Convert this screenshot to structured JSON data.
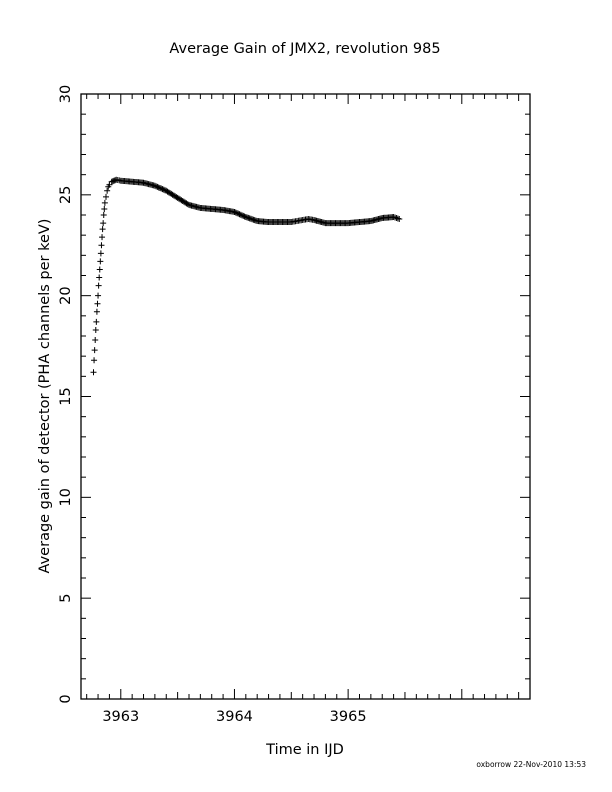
{
  "chart_data": {
    "type": "scatter",
    "marker": "+",
    "title": "Average Gain of JMX2, revolution 985",
    "xlabel": "Time in IJD",
    "ylabel": "Average gain of detector (PHA channels per keV)",
    "footer": "oxborrow 22-Nov-2010 13:53",
    "xlim": [
      3962.65,
      3966.6
    ],
    "ylim": [
      0,
      30
    ],
    "x_ticks": [
      3963,
      3964,
      3965
    ],
    "y_ticks": [
      0,
      5,
      10,
      15,
      20,
      25,
      30
    ],
    "grid": false,
    "series": [
      {
        "points": [
          [
            3962.76,
            16.2
          ],
          [
            3962.765,
            16.8
          ],
          [
            3962.77,
            17.3
          ],
          [
            3962.775,
            17.8
          ],
          [
            3962.78,
            18.3
          ],
          [
            3962.785,
            18.7
          ],
          [
            3962.79,
            19.2
          ],
          [
            3962.795,
            19.6
          ],
          [
            3962.8,
            20.0
          ],
          [
            3962.805,
            20.5
          ],
          [
            3962.81,
            20.9
          ],
          [
            3962.815,
            21.3
          ],
          [
            3962.82,
            21.7
          ],
          [
            3962.825,
            22.1
          ],
          [
            3962.83,
            22.5
          ],
          [
            3962.835,
            22.9
          ],
          [
            3962.84,
            23.3
          ],
          [
            3962.845,
            23.6
          ],
          [
            3962.85,
            24.0
          ],
          [
            3962.855,
            24.3
          ],
          [
            3962.86,
            24.6
          ],
          [
            3962.87,
            24.9
          ],
          [
            3962.88,
            25.2
          ],
          [
            3962.89,
            25.4
          ],
          [
            3962.9,
            25.5
          ],
          [
            3962.92,
            25.65
          ],
          [
            3962.94,
            25.7
          ],
          [
            3962.96,
            25.75
          ],
          [
            3963.0,
            25.7
          ],
          [
            3963.1,
            25.65
          ],
          [
            3963.2,
            25.6
          ],
          [
            3963.3,
            25.45
          ],
          [
            3963.4,
            25.2
          ],
          [
            3963.5,
            24.85
          ],
          [
            3963.6,
            24.5
          ],
          [
            3963.7,
            24.35
          ],
          [
            3963.8,
            24.3
          ],
          [
            3963.9,
            24.25
          ],
          [
            3964.0,
            24.15
          ],
          [
            3964.1,
            23.9
          ],
          [
            3964.2,
            23.7
          ],
          [
            3964.3,
            23.65
          ],
          [
            3964.4,
            23.65
          ],
          [
            3964.5,
            23.65
          ],
          [
            3964.55,
            23.7
          ],
          [
            3964.6,
            23.75
          ],
          [
            3964.65,
            23.8
          ],
          [
            3964.7,
            23.75
          ],
          [
            3964.8,
            23.6
          ],
          [
            3964.9,
            23.6
          ],
          [
            3965.0,
            23.6
          ],
          [
            3965.1,
            23.65
          ],
          [
            3965.2,
            23.7
          ],
          [
            3965.3,
            23.85
          ],
          [
            3965.4,
            23.9
          ],
          [
            3965.45,
            23.8
          ]
        ]
      }
    ]
  }
}
